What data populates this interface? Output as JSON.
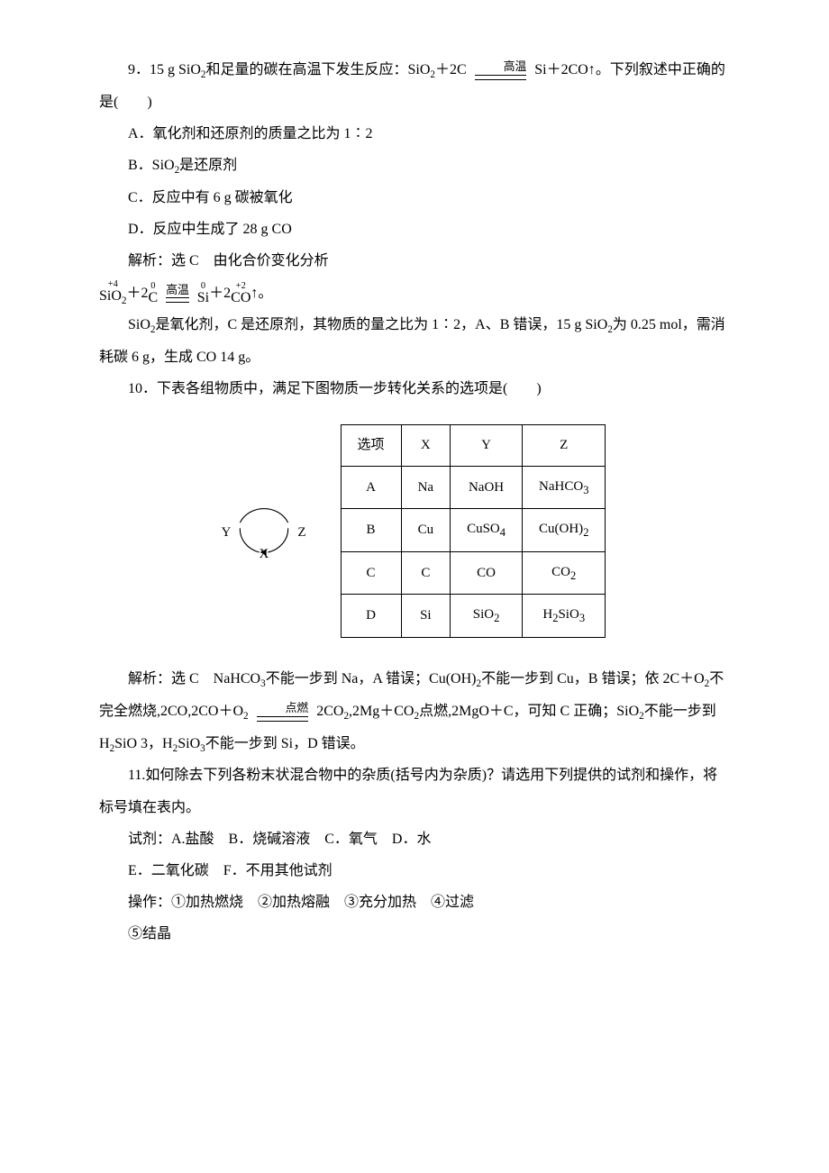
{
  "q9": {
    "stem_a": "9．15 g SiO",
    "stem_b": "和足量的碳在高温下发生反应：SiO",
    "stem_c": "＋2C ",
    "cond": "高温",
    "stem_d": " Si＋2CO↑。下列叙述中正确的是(　　)",
    "optA": "A．氧化剂和还原剂的质量之比为 1∶2",
    "optB_a": "B．SiO",
    "optB_b": "是还原剂",
    "optC": "C．反应中有 6 g 碳被氧化",
    "optD": "D．反应中生成了 28 g CO",
    "ans1": "解析：选 C　由化合价变化分析",
    "ox1": "+4",
    "ox2": "0",
    "ox3": "0",
    "ox4": "+2",
    "f1": "SiO",
    "f2": "＋2",
    "f3": "C",
    "f4": "Si",
    "f5": "＋2",
    "f6": "CO",
    "f7": "↑。",
    "ans2_a": "SiO",
    "ans2_b": "是氧化剂，C 是还原剂，其物质的量之比为 1∶2，A、B 错误，15 g SiO",
    "ans2_c": "为 0.25 mol，需消耗碳 6 g，生成 CO 14 g。"
  },
  "q10": {
    "stem": "10．下表各组物质中，满足下图物质一步转化关系的选项是(　　)",
    "dia": {
      "X": "X",
      "Y": "Y",
      "Z": "Z"
    },
    "headers": [
      "选项",
      "X",
      "Y",
      "Z"
    ],
    "rows": [
      [
        "A",
        "Na",
        "NaOH",
        "NaHCO<sub>3</sub>"
      ],
      [
        "B",
        "Cu",
        "CuSO<sub>4</sub>",
        "Cu(OH)<sub>2</sub>"
      ],
      [
        "C",
        "C",
        "CO",
        "CO<sub>2</sub>"
      ],
      [
        "D",
        "Si",
        "SiO<sub>2</sub>",
        "H<sub>2</sub>SiO<sub>3</sub>"
      ]
    ],
    "ans_a": "解析：选 C　NaHCO",
    "ans_b": "不能一步到 Na，A 错误；Cu(OH)",
    "ans_c": "不能一步到 Cu，B 错误；依 2C＋O",
    "ans_d": "不完全燃烧,2CO,2CO＋O",
    "cond": "点燃",
    "ans_e": " 2CO",
    "ans_f": ",2Mg＋CO",
    "ans_g": "点燃,2MgO＋C，可知 C 正确；SiO",
    "ans_h": "不能一步到 H",
    "ans_i": "SiO 3，H",
    "ans_j": "SiO",
    "ans_k": "不能一步到 Si，D 错误。"
  },
  "q11": {
    "stem": "11.如何除去下列各粉末状混合物中的杂质(括号内为杂质)？请选用下列提供的试剂和操作，将标号填在表内。",
    "reagent": "试剂：A.盐酸　B．烧碱溶液　C．氧气　D．水",
    "reagent2": "E．二氧化碳　F．不用其他试剂",
    "ops": "操作：①加热燃烧　②加热熔融　③充分加热　④过滤",
    "ops2": "⑤结晶"
  },
  "sub2": "2",
  "sub3": "3"
}
